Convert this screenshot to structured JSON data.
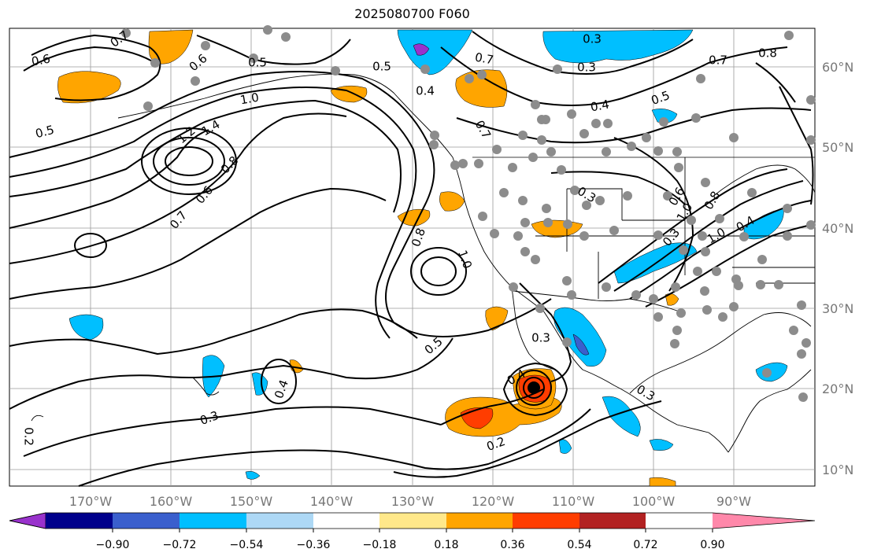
{
  "title": "2025080700 F060",
  "map": {
    "lon_ticks": [
      "170°W",
      "160°W",
      "150°W",
      "140°W",
      "130°W",
      "120°W",
      "110°W",
      "100°W",
      "90°W"
    ],
    "lat_ticks": [
      "60°N",
      "50°N",
      "40°N",
      "30°N",
      "20°N",
      "10°N"
    ],
    "contour_labels": [
      "0.6",
      "0.7",
      "0.6",
      "0.5",
      "0.5",
      "0.7",
      "0.4",
      "0.3",
      "0.7",
      "0.8",
      "0.4",
      "0.5",
      "0.7",
      "0.5",
      "1.0",
      "1.2",
      "1.4",
      "0.8",
      "0.6",
      "0.7",
      "0.8",
      "1.0",
      "0.6",
      "0.3",
      "0.8",
      "1.0",
      "1.0",
      "0.4",
      "0.3",
      "0.3",
      "0.5",
      "0.4",
      "0.3",
      "0.4",
      "0.3",
      "0.3",
      "0.2",
      "0.2"
    ],
    "station_dot_color": "#8c8c8c",
    "hurricane_marker": "filled-circle"
  },
  "colorbar": {
    "tick_labels": [
      "−0.90",
      "−0.72",
      "−0.54",
      "−0.36",
      "−0.18",
      "0.18",
      "0.36",
      "0.54",
      "0.72",
      "0.90"
    ],
    "colors": [
      "#9932cc",
      "#00008b",
      "#3a5fcd",
      "#00bfff",
      "#add8f5",
      "#ffffff",
      "#ffe88a",
      "#ffa500",
      "#ff3d00",
      "#b22222",
      "#ff88aa"
    ]
  }
}
